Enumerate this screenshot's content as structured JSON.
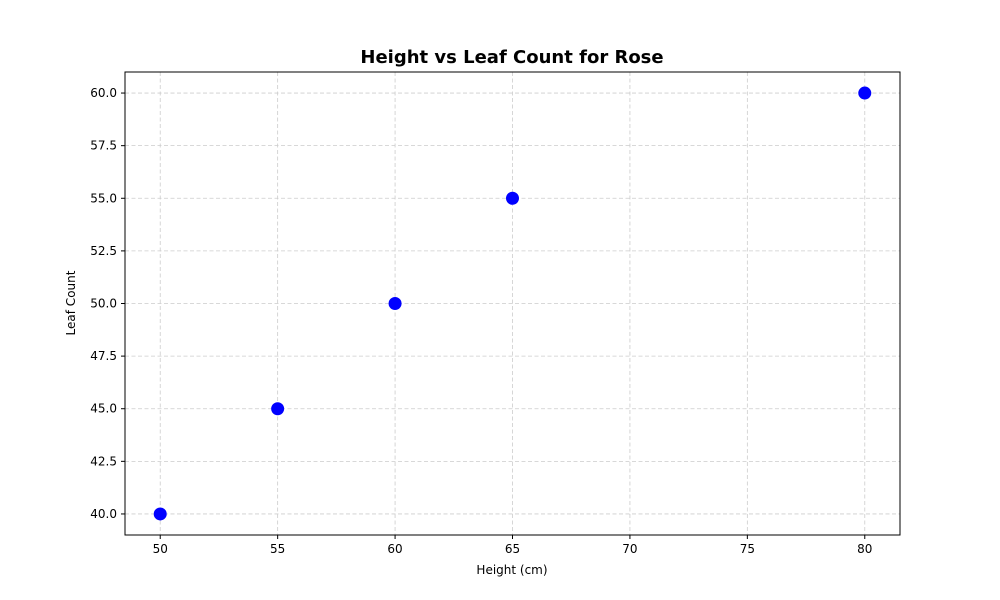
{
  "chart_data": {
    "type": "scatter",
    "title": "Height vs Leaf Count for Rose",
    "xlabel": "Height (cm)",
    "ylabel": "Leaf Count",
    "xlim": [
      48.5,
      81.5
    ],
    "ylim": [
      39.0,
      61.0
    ],
    "xticks": [
      50,
      55,
      60,
      65,
      70,
      75,
      80
    ],
    "yticks": [
      40.0,
      42.5,
      45.0,
      47.5,
      50.0,
      52.5,
      55.0,
      57.5,
      60.0
    ],
    "xtick_labels": [
      "50",
      "55",
      "60",
      "65",
      "70",
      "75",
      "80"
    ],
    "ytick_labels": [
      "40.0",
      "42.5",
      "45.0",
      "47.5",
      "50.0",
      "52.5",
      "55.0",
      "57.5",
      "60.0"
    ],
    "x": [
      50,
      55,
      60,
      65,
      80
    ],
    "y": [
      40,
      45,
      50,
      55,
      60
    ],
    "grid": true,
    "grid_style": "dashed",
    "point_color": "#0000ff",
    "grid_color": "#cccccc",
    "axis_color": "#000000"
  }
}
